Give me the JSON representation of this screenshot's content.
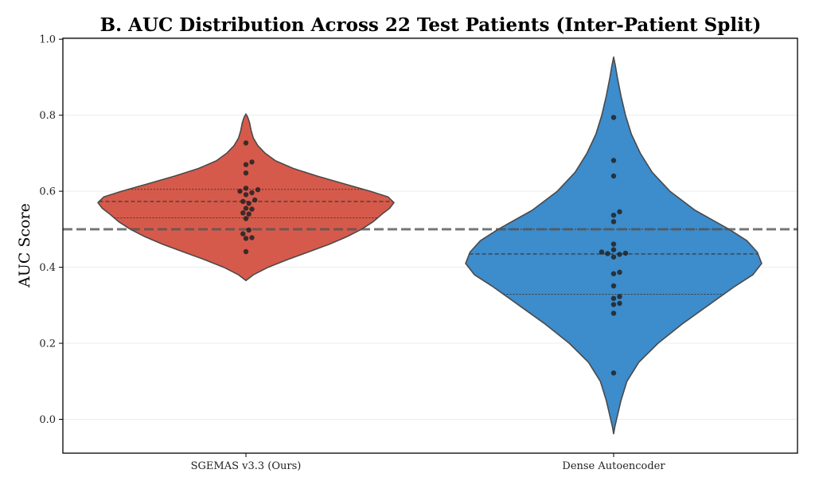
{
  "chart_data": {
    "type": "violin",
    "title": "B. AUC Distribution Across 22 Test Patients (Inter-Patient Split)",
    "xlabel": "",
    "ylabel": "AUC Score",
    "ylim": [
      -0.09,
      1.0
    ],
    "yticks": [
      0.0,
      0.2,
      0.4,
      0.6,
      0.8,
      1.0
    ],
    "ytick_labels": [
      "0.0",
      "0.2",
      "0.4",
      "0.6",
      "0.8",
      "1.0"
    ],
    "grid": true,
    "reference_line": 0.5,
    "categories": [
      "SGEMAS v3.3 (Ours)",
      "Dense Autoencoder"
    ],
    "series": [
      {
        "name": "SGEMAS v3.3 (Ours)",
        "color": "#d65a4b",
        "edge_color": "#4a4a4a",
        "violin_range": [
          0.365,
          0.803
        ],
        "quartiles": [
          0.53,
          0.573,
          0.605
        ],
        "profile": [
          [
            0.365,
            0.0
          ],
          [
            0.38,
            0.05
          ],
          [
            0.4,
            0.15
          ],
          [
            0.42,
            0.28
          ],
          [
            0.44,
            0.42
          ],
          [
            0.46,
            0.56
          ],
          [
            0.48,
            0.68
          ],
          [
            0.5,
            0.78
          ],
          [
            0.52,
            0.86
          ],
          [
            0.54,
            0.92
          ],
          [
            0.555,
            0.97
          ],
          [
            0.57,
            1.0
          ],
          [
            0.585,
            0.96
          ],
          [
            0.6,
            0.84
          ],
          [
            0.62,
            0.66
          ],
          [
            0.64,
            0.48
          ],
          [
            0.66,
            0.32
          ],
          [
            0.68,
            0.2
          ],
          [
            0.7,
            0.13
          ],
          [
            0.72,
            0.08
          ],
          [
            0.74,
            0.05
          ],
          [
            0.76,
            0.035
          ],
          [
            0.78,
            0.025
          ],
          [
            0.795,
            0.012
          ],
          [
            0.803,
            0.0
          ]
        ],
        "points": [
          0.727,
          0.677,
          0.67,
          0.648,
          0.608,
          0.604,
          0.6,
          0.596,
          0.591,
          0.577,
          0.573,
          0.568,
          0.555,
          0.553,
          0.543,
          0.54,
          0.528,
          0.498,
          0.488,
          0.478,
          0.476,
          0.441
        ]
      },
      {
        "name": "Dense Autoencoder",
        "color": "#3d8ccc",
        "edge_color": "#4a4a4a",
        "violin_range": [
          -0.038,
          0.953
        ],
        "quartiles": [
          0.329,
          0.435,
          0.5
        ],
        "profile": [
          [
            -0.038,
            0.0
          ],
          [
            -0.02,
            0.008
          ],
          [
            0.0,
            0.02
          ],
          [
            0.05,
            0.05
          ],
          [
            0.1,
            0.09
          ],
          [
            0.15,
            0.17
          ],
          [
            0.2,
            0.3
          ],
          [
            0.25,
            0.46
          ],
          [
            0.3,
            0.64
          ],
          [
            0.35,
            0.82
          ],
          [
            0.38,
            0.94
          ],
          [
            0.41,
            1.0
          ],
          [
            0.44,
            0.97
          ],
          [
            0.47,
            0.9
          ],
          [
            0.5,
            0.78
          ],
          [
            0.55,
            0.55
          ],
          [
            0.6,
            0.38
          ],
          [
            0.65,
            0.26
          ],
          [
            0.7,
            0.18
          ],
          [
            0.75,
            0.12
          ],
          [
            0.8,
            0.08
          ],
          [
            0.85,
            0.05
          ],
          [
            0.9,
            0.025
          ],
          [
            0.93,
            0.012
          ],
          [
            0.953,
            0.0
          ]
        ],
        "points": [
          0.794,
          0.681,
          0.64,
          0.546,
          0.537,
          0.52,
          0.461,
          0.446,
          0.44,
          0.437,
          0.436,
          0.434,
          0.427,
          0.387,
          0.383,
          0.351,
          0.323,
          0.318,
          0.305,
          0.302,
          0.279,
          0.122
        ]
      }
    ]
  }
}
